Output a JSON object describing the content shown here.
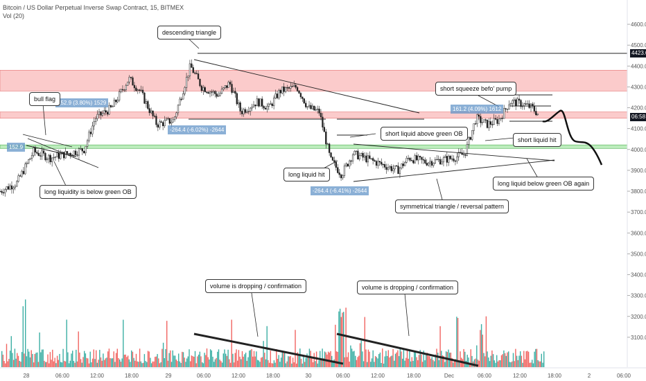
{
  "header": {
    "title": "Bitcoin / US Dollar Perpetual Inverse Swap Contract, 15, BITMEX",
    "volume": "Vol (20)"
  },
  "badges": {
    "high": "4423.0",
    "last": "06:58"
  },
  "colors": {
    "up": "#26a69a",
    "down": "#ef5350",
    "supply_zone": "#f7a1a1",
    "demand_zone": "#8fe08f",
    "line": "#222222"
  },
  "annotations": {
    "bull_flag": "bull flag",
    "descending_triangle": "descending triangle",
    "long_liquidity": "long liquidity is below green OB",
    "short_liquid_above": "short liquid above green OB",
    "long_liquid_hit": "long liquid hit",
    "symmetrical_triangle": "symmetrical triangle / reversal pattern",
    "short_squeeze": "short squeeze befo' pump",
    "short_liquid_hit": "short liquid hit",
    "long_liquid_below": "long liquid below green OB again",
    "volume_dropping_1": "volume is dropping / confirmation",
    "volume_dropping_2": "volume is dropping / confirmation"
  },
  "measure_labels": {
    "m1": "152.9 (3.80%) 1529",
    "m2": "152.9",
    "m3": "-264.4 (-6.02%) -2644",
    "m4": "-264.4 (-6.41%) -2644",
    "m5": "161.2 (4.09%) 1612"
  },
  "chart_data": {
    "type": "candlestick",
    "title": "Bitcoin / US Dollar Perpetual Inverse Swap Contract, 15, BITMEX",
    "ylim": [
      3000,
      4650
    ],
    "y_ticks": [
      3100,
      3200,
      3300,
      3400,
      3500,
      3600,
      3700,
      3800,
      3900,
      4000,
      4100,
      4200,
      4300,
      4400,
      4500,
      4600
    ],
    "x_ticks": [
      "28",
      "06:00",
      "12:00",
      "18:00",
      "29",
      "06:00",
      "12:00",
      "18:00",
      "30",
      "06:00",
      "12:00",
      "18:00",
      "Dec",
      "06:00",
      "12:00",
      "18:00",
      "2",
      "06:00"
    ],
    "key_levels": {
      "high_line": 4423.0,
      "last_price": 4172
    },
    "zones": [
      {
        "name": "supply",
        "from": 4280,
        "to": 4380
      },
      {
        "name": "supply",
        "from": 4150,
        "to": 4180
      },
      {
        "name": "demand",
        "from": 4005,
        "to": 4022
      }
    ],
    "price_path": [
      {
        "t": 0,
        "p": 3800
      },
      {
        "t": 3,
        "p": 3840
      },
      {
        "t": 6,
        "p": 3990
      },
      {
        "t": 9,
        "p": 3960
      },
      {
        "t": 12,
        "p": 3980
      },
      {
        "t": 15,
        "p": 4000
      },
      {
        "t": 17,
        "p": 4150
      },
      {
        "t": 20,
        "p": 4200
      },
      {
        "t": 23,
        "p": 4340
      },
      {
        "t": 25,
        "p": 4280
      },
      {
        "t": 28,
        "p": 4120
      },
      {
        "t": 31,
        "p": 4140
      },
      {
        "t": 34,
        "p": 4400
      },
      {
        "t": 36,
        "p": 4300
      },
      {
        "t": 39,
        "p": 4260
      },
      {
        "t": 41,
        "p": 4320
      },
      {
        "t": 43,
        "p": 4180
      },
      {
        "t": 46,
        "p": 4230
      },
      {
        "t": 48,
        "p": 4200
      },
      {
        "t": 50,
        "p": 4280
      },
      {
        "t": 53,
        "p": 4300
      },
      {
        "t": 55,
        "p": 4200
      },
      {
        "t": 57,
        "p": 4180
      },
      {
        "t": 59,
        "p": 3950
      },
      {
        "t": 61,
        "p": 3880
      },
      {
        "t": 63,
        "p": 3980
      },
      {
        "t": 65,
        "p": 3960
      },
      {
        "t": 67,
        "p": 3940
      },
      {
        "t": 69,
        "p": 3920
      },
      {
        "t": 71,
        "p": 3900
      },
      {
        "t": 73,
        "p": 3960
      },
      {
        "t": 76,
        "p": 3940
      },
      {
        "t": 79,
        "p": 3950
      },
      {
        "t": 81,
        "p": 3960
      },
      {
        "t": 83,
        "p": 3980
      },
      {
        "t": 85,
        "p": 4150
      },
      {
        "t": 87,
        "p": 4120
      },
      {
        "t": 89,
        "p": 4140
      },
      {
        "t": 90,
        "p": 4180
      },
      {
        "t": 91,
        "p": 4230
      },
      {
        "t": 93,
        "p": 4220
      },
      {
        "t": 95,
        "p": 4200
      },
      {
        "t": 96,
        "p": 4172
      }
    ],
    "projection": [
      {
        "t": 96,
        "p": 4172
      },
      {
        "t": 98,
        "p": 4200
      },
      {
        "t": 100,
        "p": 4050
      },
      {
        "t": 102,
        "p": 4040
      },
      {
        "t": 104,
        "p": 3960
      },
      {
        "t": 106,
        "p": 3940
      }
    ]
  }
}
